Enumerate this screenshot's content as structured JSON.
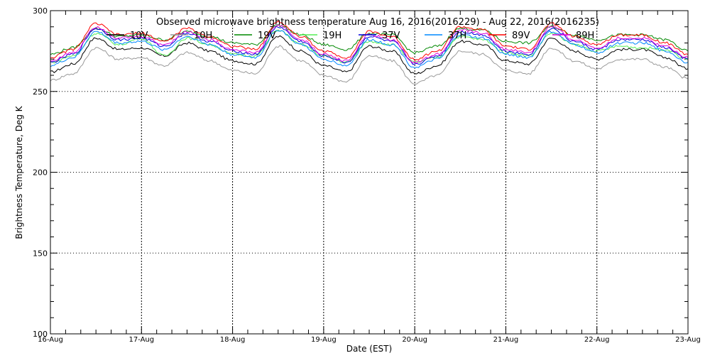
{
  "chart_data": {
    "type": "line",
    "title": "Observed microwave brightness temperature Aug 16, 2016(2016229) - Aug 22, 2016(2016235)",
    "xlabel": "Date (EST)",
    "ylabel": "Brightness Temperature, Deg K",
    "ylim": [
      100,
      300
    ],
    "yticks": [
      "100",
      "150",
      "200",
      "250",
      "300"
    ],
    "xlim_days": [
      16,
      23
    ],
    "xticks": [
      "16-Aug",
      "17-Aug",
      "18-Aug",
      "19-Aug",
      "20-Aug",
      "21-Aug",
      "22-Aug",
      "23-Aug"
    ],
    "grid": true,
    "legend_placement": "top",
    "x_days": [
      16,
      16.25,
      16.5,
      16.75,
      17,
      17.25,
      17.5,
      17.75,
      18,
      18.25,
      18.5,
      18.75,
      19,
      19.25,
      19.5,
      19.75,
      20,
      20.25,
      20.5,
      20.75,
      21,
      21.25,
      21.5,
      21.75,
      22,
      22.25,
      22.5,
      22.75,
      23
    ],
    "series": [
      {
        "name": "10V",
        "color": "#000000",
        "values": [
          262,
          267,
          283,
          276,
          277,
          272,
          280,
          275,
          269,
          267,
          284,
          275,
          266,
          262,
          278,
          275,
          261,
          266,
          281,
          279,
          269,
          267,
          283,
          275,
          270,
          276,
          276,
          271,
          264
        ]
      },
      {
        "name": "10H",
        "color": "#999999",
        "values": [
          257,
          261,
          277,
          270,
          271,
          266,
          274,
          269,
          263,
          261,
          278,
          269,
          260,
          256,
          272,
          269,
          255,
          260,
          275,
          273,
          263,
          261,
          277,
          269,
          264,
          270,
          270,
          265,
          258
        ]
      },
      {
        "name": "19V",
        "color": "#008800",
        "values": [
          273,
          277,
          289,
          284,
          285,
          282,
          287,
          284,
          280,
          279,
          291,
          285,
          279,
          276,
          286,
          285,
          274,
          278,
          289,
          288,
          281,
          280,
          290,
          285,
          282,
          285,
          285,
          282,
          275
        ]
      },
      {
        "name": "19H",
        "color": "#55ee55",
        "values": [
          268,
          272,
          286,
          279,
          283,
          272,
          283,
          279,
          273,
          272,
          288,
          279,
          272,
          268,
          281,
          279,
          268,
          271,
          284,
          282,
          274,
          272,
          286,
          279,
          275,
          278,
          277,
          276,
          270
        ]
      },
      {
        "name": "37V",
        "color": "#0000dd",
        "values": [
          268,
          273,
          289,
          282,
          283,
          278,
          286,
          281,
          275,
          273,
          290,
          281,
          272,
          268,
          284,
          281,
          267,
          272,
          287,
          285,
          275,
          273,
          289,
          281,
          276,
          282,
          282,
          277,
          270
        ]
      },
      {
        "name": "37H",
        "color": "#0088ff",
        "values": [
          266,
          271,
          287,
          280,
          281,
          276,
          284,
          279,
          273,
          271,
          288,
          279,
          270,
          266,
          282,
          279,
          265,
          270,
          285,
          283,
          273,
          271,
          287,
          279,
          274,
          280,
          280,
          275,
          268
        ]
      },
      {
        "name": "89V",
        "color": "#ff0000",
        "values": [
          271,
          276,
          292,
          285,
          286,
          281,
          289,
          284,
          278,
          276,
          293,
          284,
          275,
          271,
          287,
          284,
          270,
          275,
          290,
          288,
          278,
          276,
          292,
          284,
          279,
          285,
          285,
          280,
          273
        ]
      },
      {
        "name": "89H",
        "color": "#dd00dd",
        "values": [
          269,
          274,
          290,
          283,
          284,
          279,
          287,
          282,
          276,
          274,
          291,
          282,
          273,
          269,
          285,
          282,
          268,
          273,
          288,
          286,
          276,
          274,
          290,
          282,
          277,
          283,
          283,
          278,
          271
        ]
      }
    ]
  }
}
